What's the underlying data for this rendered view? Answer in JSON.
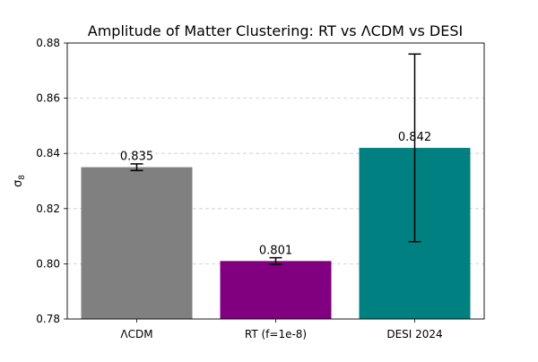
{
  "chart_data": {
    "type": "bar",
    "title": "Amplitude of Matter Clustering: RT vs ΛCDM vs DESI",
    "xlabel": "",
    "ylabel": "σ",
    "ylabel_subscript": "8",
    "categories": [
      "ΛCDM",
      "RT (f=1e-8)",
      "DESI 2024"
    ],
    "values": [
      0.835,
      0.801,
      0.842
    ],
    "errors": [
      0.0012,
      0.0012,
      0.034
    ],
    "data_labels": [
      "0.835",
      "0.801",
      "0.842"
    ],
    "colors": [
      "#808080",
      "#800080",
      "#008080"
    ],
    "ylim": [
      0.78,
      0.88
    ],
    "yticks": [
      0.78,
      0.8,
      0.82,
      0.84,
      0.86,
      0.88
    ],
    "ytick_labels": [
      "0.78",
      "0.80",
      "0.82",
      "0.84",
      "0.86",
      "0.88"
    ],
    "grid": true,
    "grid_axis": "y"
  }
}
